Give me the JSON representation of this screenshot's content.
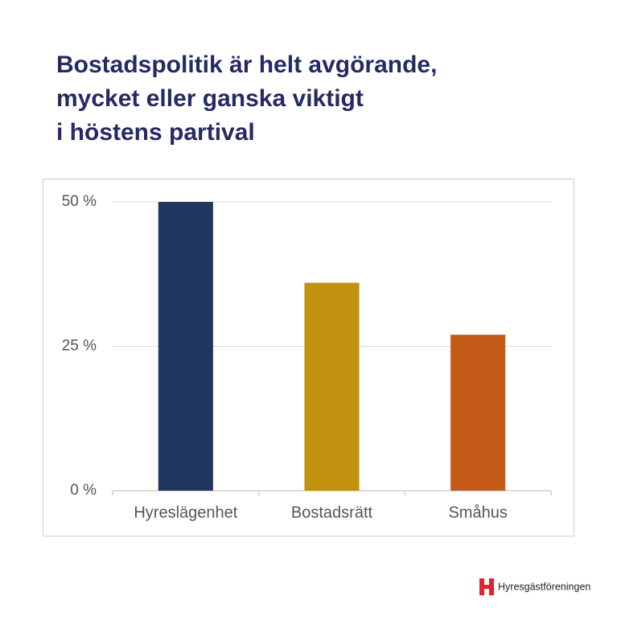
{
  "chart_data": {
    "type": "bar",
    "title": [
      "Bostadspolitik är helt avgörande,",
      "mycket eller ganska viktigt",
      "i höstens partival"
    ],
    "categories": [
      "Hyreslägenhet",
      "Bostadsrätt",
      "Småhus"
    ],
    "values": [
      50,
      36,
      27
    ],
    "colors": [
      "#22375f",
      "#c1920f",
      "#c45a17"
    ],
    "ylim": [
      0,
      50
    ],
    "yticks": [
      {
        "value": 0,
        "label": "0 %"
      },
      {
        "value": 25,
        "label": "25 %"
      },
      {
        "value": 50,
        "label": "50 %"
      }
    ],
    "grid": true
  },
  "logo": "Hyresgästföreningen"
}
